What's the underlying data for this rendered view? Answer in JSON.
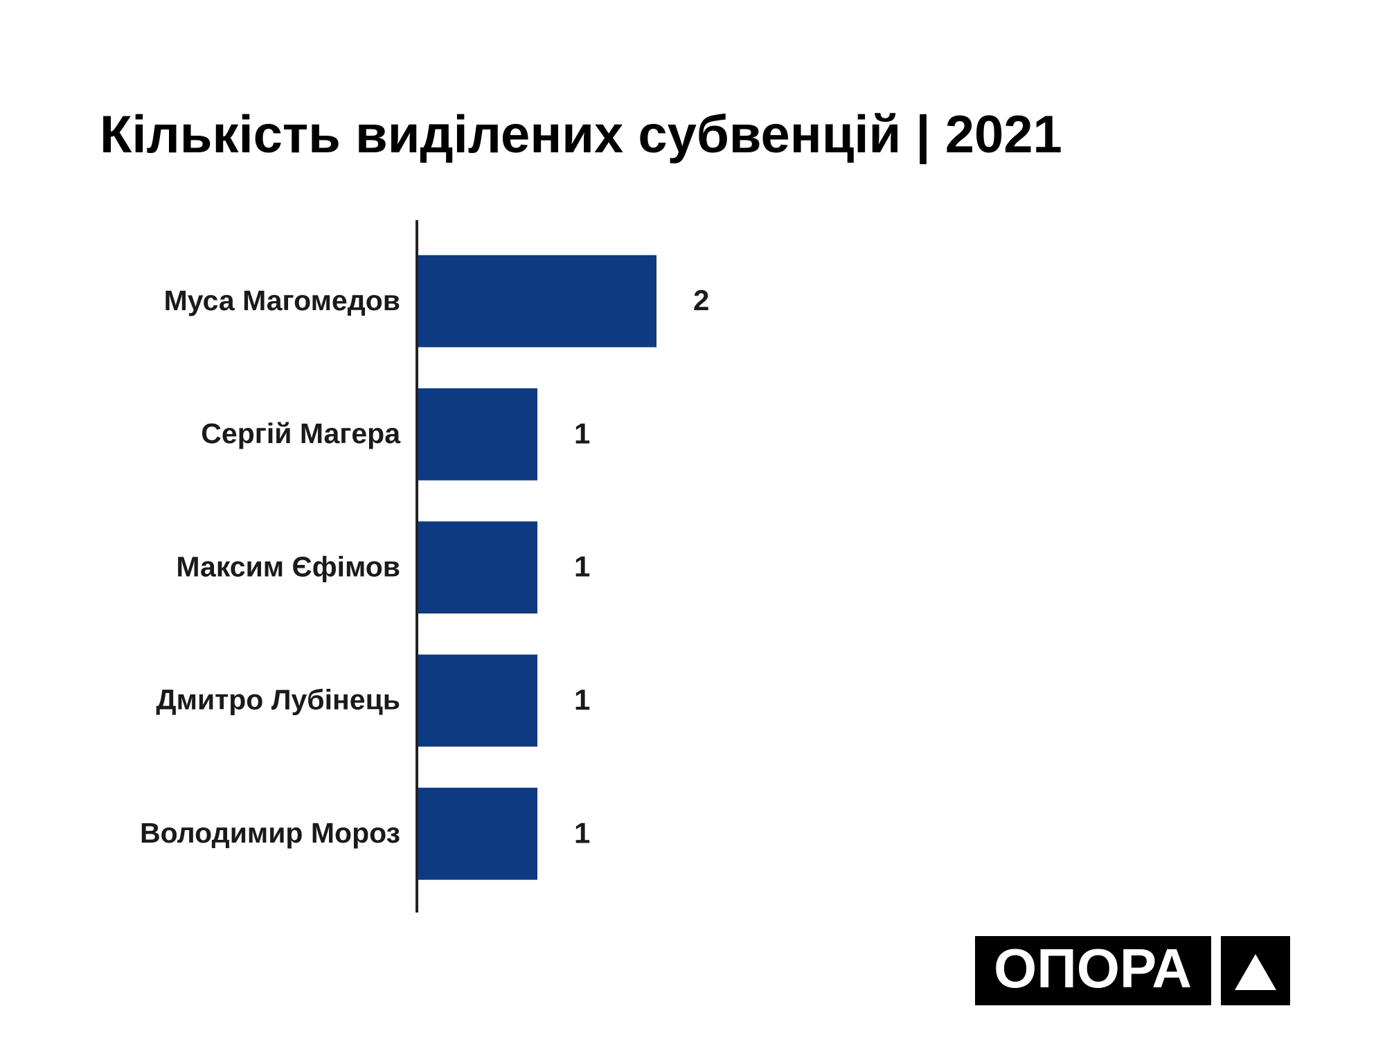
{
  "chart_data": {
    "type": "bar",
    "orientation": "horizontal",
    "title": "Кількість виділених субвенцій | 2021",
    "categories": [
      "Муса Магомедов",
      "Сергій Магера",
      "Максим Єфімов",
      "Дмитро Лубінець",
      "Володимир Мороз"
    ],
    "values": [
      2,
      1,
      1,
      1,
      1
    ],
    "color": "#0d3a80"
  },
  "logo": {
    "text": "ОПОРА"
  }
}
